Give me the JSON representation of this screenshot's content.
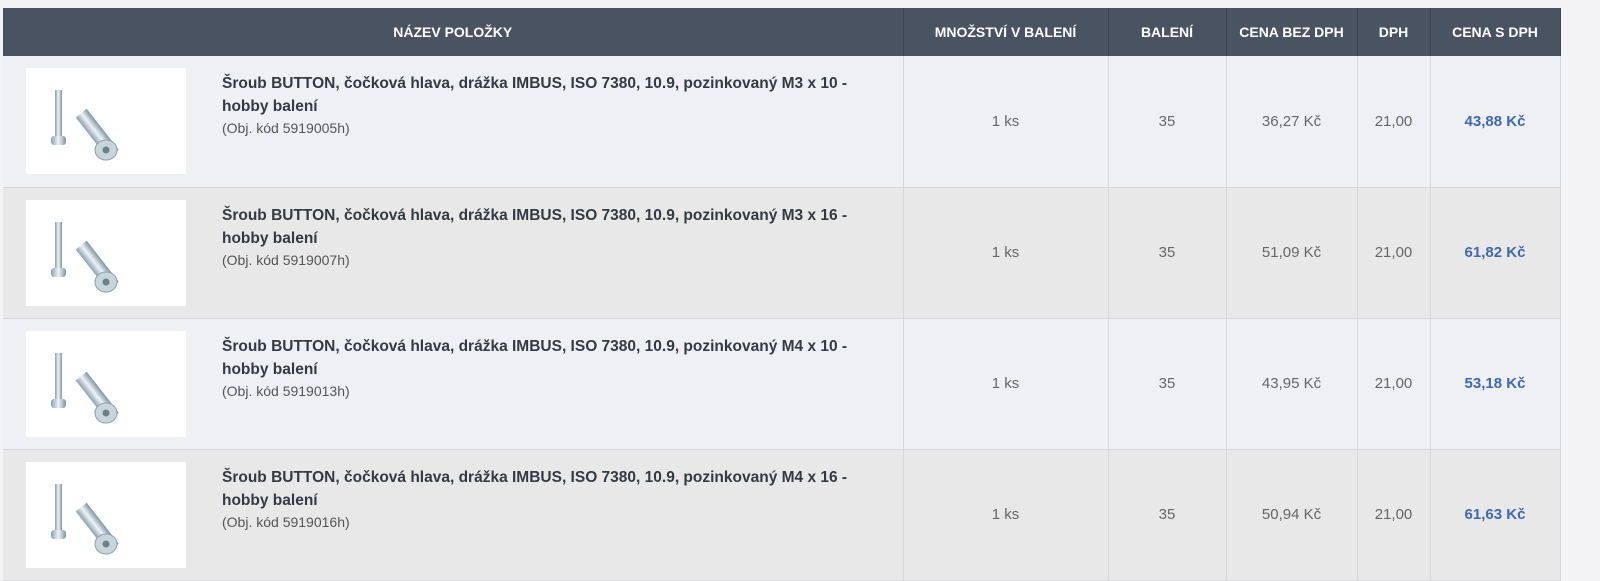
{
  "columns": [
    "NÁZEV POLOŽKY",
    "MNOŽSTVÍ V BALENÍ",
    "BALENÍ",
    "CENA BEZ DPH",
    "DPH",
    "CENA S DPH"
  ],
  "rows": [
    {
      "name": "Šroub BUTTON, čočková hlava, drážka IMBUS, ISO 7380, 10.9, pozinkovaný M3 x 10 - hobby balení",
      "code": "(Obj. kód 5919005h)",
      "qty": "1 ks",
      "pack": "35",
      "price_net": "36,27 Kč",
      "vat": "21,00",
      "price_gross": "43,88 Kč"
    },
    {
      "name": "Šroub BUTTON, čočková hlava, drážka IMBUS, ISO 7380, 10.9, pozinkovaný M3 x 16 - hobby balení",
      "code": "(Obj. kód 5919007h)",
      "qty": "1 ks",
      "pack": "35",
      "price_net": "51,09 Kč",
      "vat": "21,00",
      "price_gross": "61,82 Kč"
    },
    {
      "name": "Šroub BUTTON, čočková hlava, drážka IMBUS, ISO 7380, 10.9, pozinkovaný M4 x 10 - hobby balení",
      "code": "(Obj. kód 5919013h)",
      "qty": "1 ks",
      "pack": "35",
      "price_net": "43,95 Kč",
      "vat": "21,00",
      "price_gross": "53,18 Kč"
    },
    {
      "name": "Šroub BUTTON, čočková hlava, drážka IMBUS, ISO 7380, 10.9, pozinkovaný M4 x 16 - hobby balení",
      "code": "(Obj. kód 5919016h)",
      "qty": "1 ks",
      "pack": "35",
      "price_net": "50,94 Kč",
      "vat": "21,00",
      "price_gross": "61,63 Kč"
    }
  ],
  "colors": {
    "header": "#4a5361",
    "price": "#3f68ad"
  }
}
